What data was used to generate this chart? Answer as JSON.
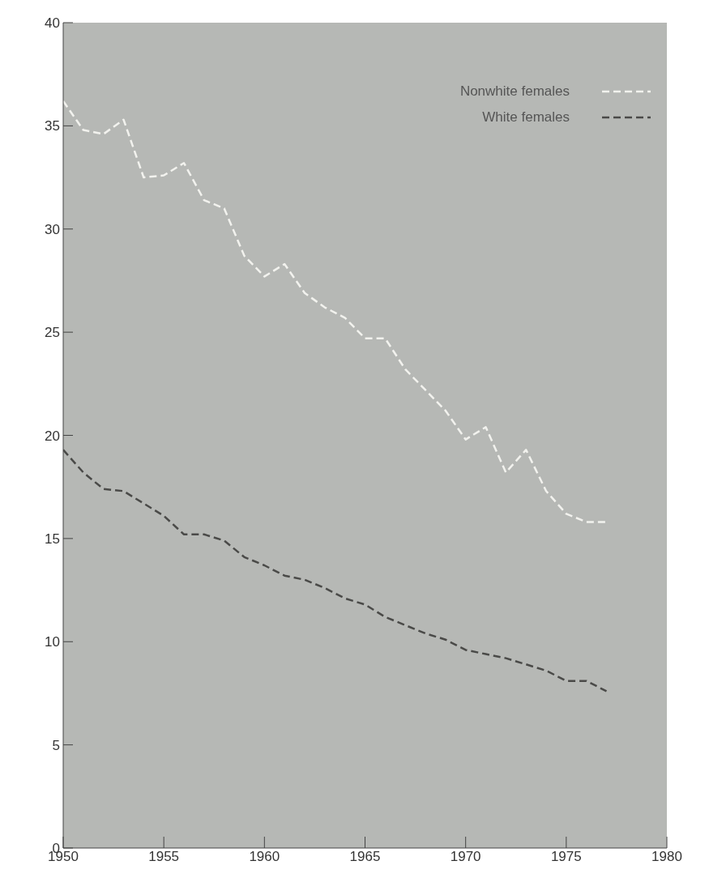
{
  "chart_data": {
    "type": "line",
    "x": [
      1950,
      1951,
      1952,
      1953,
      1954,
      1955,
      1956,
      1957,
      1958,
      1959,
      1960,
      1961,
      1962,
      1963,
      1964,
      1965,
      1966,
      1967,
      1968,
      1969,
      1970,
      1971,
      1972,
      1973,
      1974,
      1975,
      1976,
      1977
    ],
    "series": [
      {
        "name": "Nonwhite females",
        "color": "#f2f2ee",
        "values": [
          36.2,
          34.8,
          34.6,
          35.3,
          32.5,
          32.6,
          33.2,
          31.4,
          31.0,
          28.7,
          27.7,
          28.3,
          26.9,
          26.2,
          25.7,
          24.7,
          24.7,
          23.2,
          22.2,
          21.2,
          19.8,
          20.4,
          18.2,
          19.3,
          17.3,
          16.2,
          15.8,
          15.8
        ]
      },
      {
        "name": "White females",
        "color": "#4a4a48",
        "values": [
          19.3,
          18.2,
          17.4,
          17.3,
          16.7,
          16.1,
          15.2,
          15.2,
          14.9,
          14.1,
          13.7,
          13.2,
          13.0,
          12.6,
          12.1,
          11.8,
          11.2,
          10.8,
          10.4,
          10.1,
          9.6,
          9.4,
          9.2,
          8.9,
          8.6,
          8.1,
          8.1,
          7.6
        ]
      }
    ],
    "xlim": [
      1950,
      1980
    ],
    "xticks": [
      1950,
      1955,
      1960,
      1965,
      1970,
      1975,
      1980
    ],
    "ylim": [
      0,
      40
    ],
    "yticks": [
      0,
      5,
      10,
      15,
      20,
      25,
      30,
      35,
      40
    ],
    "grid": false,
    "legend": "top right",
    "marker": "none",
    "line_style": "dashed"
  }
}
